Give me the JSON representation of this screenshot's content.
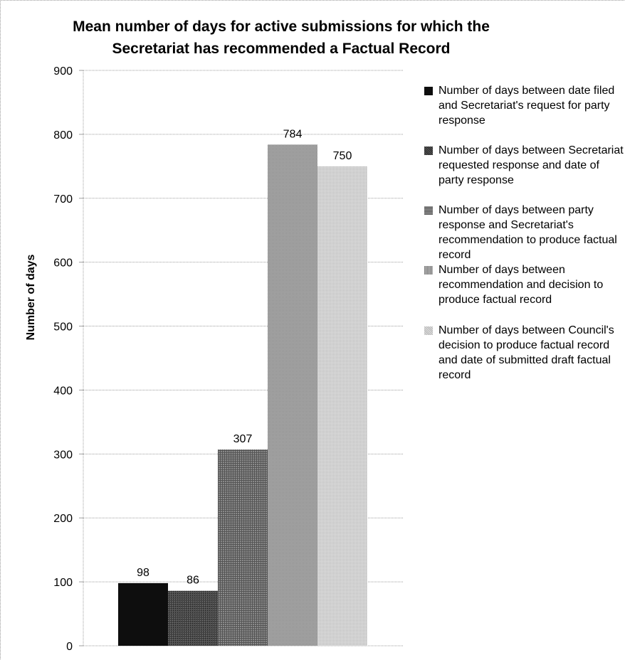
{
  "chart_data": {
    "type": "bar",
    "title_line1": "Mean number of days for active submissions for which the",
    "title_line2": "Secretariat has recommended a Factual Record",
    "ylabel": "Number of days",
    "xlabel": "",
    "ylim": [
      0,
      900
    ],
    "yticks": [
      "0",
      "100",
      "200",
      "300",
      "400",
      "500",
      "600",
      "700",
      "800",
      "900"
    ],
    "grid": true,
    "legend_position": "right",
    "series": [
      {
        "name": "Number of days between date filed and Secretariat's request for party response",
        "value": 98,
        "label": "98",
        "color": "#0e0e0e"
      },
      {
        "name": "Number of days between Secretariat requested response and date of party response",
        "value": 86,
        "label": "86",
        "color": "#3c3c3c"
      },
      {
        "name": "Number of days between party response and Secretariat's recommendation to produce factual record",
        "value": 307,
        "label": "307",
        "color": "#7a7a7a"
      },
      {
        "name": "Number of days between recommendation and decision to produce factual record",
        "value": 784,
        "label": "784",
        "color": "#a4a4a4"
      },
      {
        "name": "Number of days between Council's decision to produce factual record and date of submitted draft factual record",
        "value": 750,
        "label": "750",
        "color": "#d0d0d0"
      }
    ]
  }
}
